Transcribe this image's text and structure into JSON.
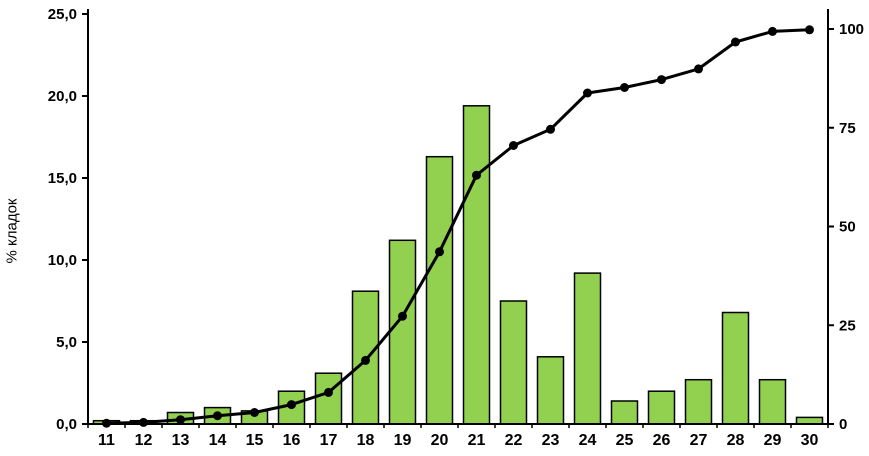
{
  "chart_data": {
    "type": "bar",
    "subtype": "combo-bar-with-cumulative-line",
    "title": "",
    "ylabel_left": "% кладок",
    "ylabel_right": "",
    "xlabel": "",
    "grid": false,
    "legend": "none",
    "categories": [
      "11",
      "12",
      "13",
      "14",
      "15",
      "16",
      "17",
      "18",
      "19",
      "20",
      "21",
      "22",
      "23",
      "24",
      "25",
      "26",
      "27",
      "28",
      "29",
      "30"
    ],
    "bars": {
      "axis": "left",
      "values": [
        0.2,
        0.2,
        0.7,
        1.0,
        0.8,
        2.0,
        3.1,
        8.1,
        11.2,
        16.3,
        19.4,
        7.5,
        4.1,
        9.2,
        1.4,
        2.0,
        2.7,
        6.8,
        2.7,
        0.4
      ]
    },
    "line": {
      "axis": "right",
      "values": [
        0.2,
        0.4,
        1.1,
        2.1,
        2.9,
        4.9,
        8.0,
        16.1,
        27.3,
        43.6,
        63.0,
        70.5,
        74.6,
        83.8,
        85.2,
        87.2,
        89.9,
        96.7,
        99.4,
        99.8
      ]
    },
    "left_axis": {
      "min": 0,
      "max": 25,
      "ticks": [
        "0,0",
        "5,0",
        "10,0",
        "15,0",
        "20,0",
        "25,0"
      ]
    },
    "right_axis": {
      "min": 0,
      "max": 100,
      "ticks": [
        "0",
        "25",
        "50",
        "75",
        "100"
      ]
    },
    "colors": {
      "bar_fill": "#92d050",
      "bar_stroke": "#000000",
      "line": "#000000",
      "point": "#000000",
      "axis": "#000000"
    }
  }
}
